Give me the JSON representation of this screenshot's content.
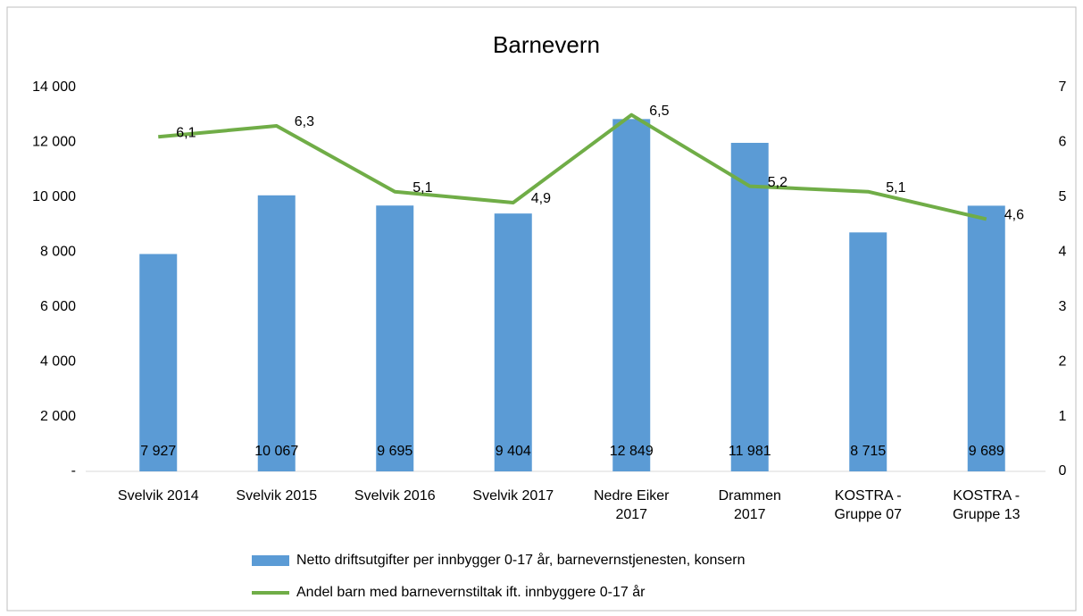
{
  "chart_data": {
    "type": "bar_line",
    "title": "Barnevern",
    "categories": [
      "Svelvik 2014",
      "Svelvik 2015",
      "Svelvik 2016",
      "Svelvik 2017",
      "Nedre Eiker\n2017",
      "Drammen\n2017",
      "KOSTRA -\nGruppe 07",
      "KOSTRA -\nGruppe 13"
    ],
    "series": [
      {
        "name": "Netto driftsutgifter per innbygger 0-17 år, barnevernstjenesten, konsern",
        "type": "bar",
        "color": "#5b9bd5",
        "values": [
          7927,
          10067,
          9695,
          9404,
          12849,
          11981,
          8715,
          9689
        ],
        "value_labels": [
          "7 927",
          "10 067",
          "9 695",
          "9 404",
          "12 849",
          "11 981",
          "8 715",
          "9 689"
        ]
      },
      {
        "name": "Andel barn med barnevernstiltak ift. innbyggere 0-17 år",
        "type": "line",
        "axis": "y2",
        "color": "#70ad47",
        "values": [
          6.1,
          6.3,
          5.1,
          4.9,
          6.5,
          5.2,
          5.1,
          4.6
        ],
        "value_labels": [
          "6,1",
          "6,3",
          "5,1",
          "4,9",
          "6,5",
          "5,2",
          "5,1",
          "4,6"
        ]
      }
    ],
    "ylim": [
      0,
      14000
    ],
    "yticks": [
      {
        "value": 0,
        "label": "-"
      },
      {
        "value": 2000,
        "label": "2 000"
      },
      {
        "value": 4000,
        "label": "4 000"
      },
      {
        "value": 6000,
        "label": "6 000"
      },
      {
        "value": 8000,
        "label": "8 000"
      },
      {
        "value": 10000,
        "label": "10 000"
      },
      {
        "value": 12000,
        "label": "12 000"
      },
      {
        "value": 14000,
        "label": "14 000"
      }
    ],
    "y2lim": [
      0,
      7
    ],
    "y2ticks": [
      0,
      1,
      2,
      3,
      4,
      5,
      6,
      7
    ],
    "legend": "bottom"
  }
}
